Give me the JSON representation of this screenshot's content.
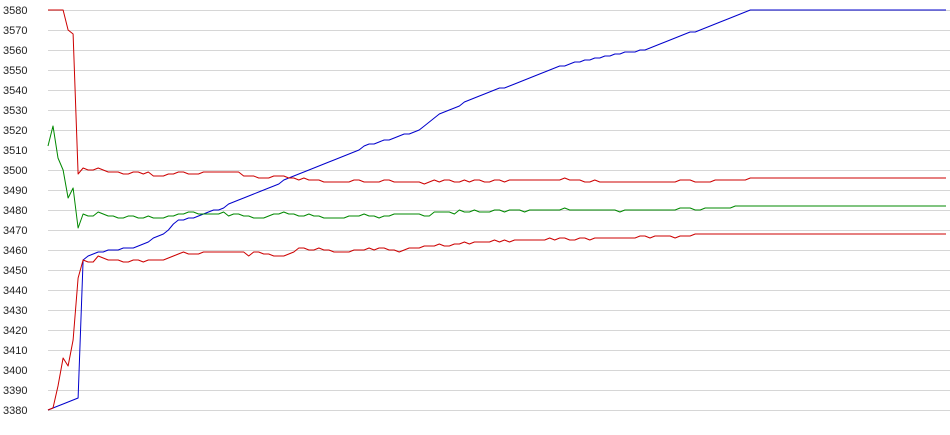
{
  "chart_data": {
    "type": "line",
    "title": "",
    "xlabel": "",
    "ylabel": "",
    "ylim": [
      3380,
      3580
    ],
    "yticks": [
      3380,
      3390,
      3400,
      3410,
      3420,
      3430,
      3440,
      3450,
      3460,
      3470,
      3480,
      3490,
      3500,
      3510,
      3520,
      3530,
      3540,
      3550,
      3560,
      3570,
      3580
    ],
    "grid": true,
    "legend": "none",
    "x": [
      0,
      1,
      2,
      3,
      4,
      5,
      6,
      7,
      8,
      9,
      10,
      11,
      12,
      13,
      14,
      15,
      16,
      17,
      18,
      19,
      20,
      21,
      22,
      23,
      24,
      25,
      26,
      27,
      28,
      29,
      30,
      31,
      32,
      33,
      34,
      35,
      36,
      37,
      38,
      39,
      40,
      41,
      42,
      43,
      44,
      45,
      46,
      47,
      48,
      49,
      50,
      51,
      52,
      53,
      54,
      55,
      56,
      57,
      58,
      59,
      60,
      61,
      62,
      63,
      64,
      65,
      66,
      67,
      68,
      69,
      70,
      71,
      72,
      73,
      74,
      75,
      76,
      77,
      78,
      79,
      80,
      81,
      82,
      83,
      84,
      85,
      86,
      87,
      88,
      89,
      90,
      91,
      92,
      93,
      94,
      95,
      96,
      97,
      98,
      99,
      100,
      101,
      102,
      103,
      104,
      105,
      106,
      107,
      108,
      109,
      110,
      111,
      112,
      113,
      114,
      115,
      116,
      117,
      118,
      119,
      120,
      121,
      122,
      123,
      124,
      125,
      126,
      127,
      128,
      129,
      130,
      131,
      132,
      133,
      134,
      135,
      136,
      137,
      138,
      139,
      140,
      141,
      142,
      143,
      144,
      145,
      146,
      147,
      148,
      149,
      150,
      151,
      152,
      153,
      154,
      155,
      156,
      157,
      158,
      159,
      160,
      161,
      162,
      163,
      164,
      165,
      166,
      167,
      168,
      169,
      170,
      171,
      172,
      173,
      174,
      175,
      176,
      177,
      178,
      179
    ],
    "series": [
      {
        "color": "#0000cc",
        "values": [
          3380,
          3381,
          3382,
          3383,
          3384,
          3385,
          3386,
          3455,
          3457,
          3458,
          3459,
          3459,
          3460,
          3460,
          3460,
          3461,
          3461,
          3461,
          3462,
          3463,
          3464,
          3466,
          3467,
          3468,
          3470,
          3473,
          3475,
          3475,
          3476,
          3476,
          3477,
          3478,
          3479,
          3480,
          3480,
          3481,
          3483,
          3484,
          3485,
          3486,
          3487,
          3488,
          3489,
          3490,
          3491,
          3492,
          3493,
          3495,
          3496,
          3497,
          3498,
          3499,
          3500,
          3501,
          3502,
          3503,
          3504,
          3505,
          3506,
          3507,
          3508,
          3509,
          3510,
          3512,
          3513,
          3513,
          3514,
          3515,
          3515,
          3516,
          3517,
          3518,
          3518,
          3519,
          3520,
          3522,
          3524,
          3526,
          3528,
          3529,
          3530,
          3531,
          3532,
          3534,
          3535,
          3536,
          3537,
          3538,
          3539,
          3540,
          3541,
          3541,
          3542,
          3543,
          3544,
          3545,
          3546,
          3547,
          3548,
          3549,
          3550,
          3551,
          3552,
          3552,
          3553,
          3554,
          3554,
          3555,
          3555,
          3556,
          3556,
          3557,
          3557,
          3558,
          3558,
          3559,
          3559,
          3559,
          3560,
          3560,
          3561,
          3562,
          3563,
          3564,
          3565,
          3566,
          3567,
          3568,
          3569,
          3569,
          3570,
          3571,
          3572,
          3573,
          3574,
          3575,
          3576,
          3577,
          3578,
          3579,
          3580,
          3580,
          3580,
          3580,
          3580,
          3580,
          3580,
          3580,
          3580,
          3580,
          3580,
          3580,
          3580,
          3580,
          3580,
          3580,
          3580,
          3580,
          3580,
          3580,
          3580,
          3580,
          3580,
          3580,
          3580,
          3580,
          3580,
          3580,
          3580,
          3580,
          3580,
          3580,
          3580,
          3580,
          3580,
          3580,
          3580,
          3580,
          3580,
          3580
        ]
      },
      {
        "color": "#cc0000",
        "values": [
          3580,
          3580,
          3580,
          3580,
          3570,
          3568,
          3498,
          3501,
          3500,
          3500,
          3501,
          3500,
          3499,
          3499,
          3499,
          3498,
          3498,
          3499,
          3499,
          3498,
          3499,
          3497,
          3497,
          3497,
          3498,
          3498,
          3499,
          3499,
          3498,
          3498,
          3498,
          3499,
          3499,
          3499,
          3499,
          3499,
          3499,
          3499,
          3499,
          3497,
          3497,
          3497,
          3496,
          3496,
          3496,
          3497,
          3497,
          3497,
          3496,
          3496,
          3495,
          3496,
          3495,
          3495,
          3495,
          3494,
          3494,
          3494,
          3494,
          3494,
          3494,
          3495,
          3495,
          3494,
          3494,
          3494,
          3494,
          3495,
          3495,
          3494,
          3494,
          3494,
          3494,
          3494,
          3494,
          3493,
          3494,
          3495,
          3494,
          3495,
          3495,
          3494,
          3494,
          3495,
          3494,
          3495,
          3495,
          3494,
          3494,
          3495,
          3495,
          3494,
          3495,
          3495,
          3495,
          3495,
          3495,
          3495,
          3495,
          3495,
          3495,
          3495,
          3495,
          3496,
          3495,
          3495,
          3495,
          3494,
          3494,
          3495,
          3494,
          3494,
          3494,
          3494,
          3494,
          3494,
          3494,
          3494,
          3494,
          3494,
          3494,
          3494,
          3494,
          3494,
          3494,
          3494,
          3495,
          3495,
          3495,
          3494,
          3494,
          3494,
          3494,
          3495,
          3495,
          3495,
          3495,
          3495,
          3495,
          3495,
          3496,
          3496,
          3496,
          3496,
          3496,
          3496,
          3496,
          3496,
          3496,
          3496,
          3496,
          3496,
          3496,
          3496,
          3496,
          3496,
          3496,
          3496,
          3496,
          3496,
          3496,
          3496,
          3496,
          3496,
          3496,
          3496,
          3496,
          3496,
          3496,
          3496,
          3496,
          3496,
          3496,
          3496,
          3496,
          3496,
          3496,
          3496,
          3496,
          3496
        ]
      },
      {
        "color": "#008800",
        "values": [
          3512,
          3522,
          3506,
          3500,
          3486,
          3491,
          3471,
          3478,
          3477,
          3477,
          3479,
          3478,
          3477,
          3477,
          3476,
          3476,
          3477,
          3477,
          3476,
          3476,
          3477,
          3476,
          3476,
          3476,
          3477,
          3477,
          3478,
          3478,
          3479,
          3479,
          3478,
          3478,
          3478,
          3478,
          3478,
          3479,
          3477,
          3478,
          3478,
          3477,
          3477,
          3476,
          3476,
          3476,
          3477,
          3478,
          3478,
          3479,
          3478,
          3478,
          3477,
          3477,
          3478,
          3477,
          3477,
          3476,
          3476,
          3476,
          3476,
          3476,
          3477,
          3477,
          3477,
          3478,
          3477,
          3477,
          3476,
          3477,
          3477,
          3478,
          3478,
          3478,
          3478,
          3478,
          3478,
          3477,
          3477,
          3479,
          3479,
          3479,
          3479,
          3478,
          3480,
          3479,
          3479,
          3480,
          3479,
          3479,
          3479,
          3480,
          3480,
          3479,
          3480,
          3480,
          3480,
          3479,
          3480,
          3480,
          3480,
          3480,
          3480,
          3480,
          3480,
          3481,
          3480,
          3480,
          3480,
          3480,
          3480,
          3480,
          3480,
          3480,
          3480,
          3480,
          3479,
          3480,
          3480,
          3480,
          3480,
          3480,
          3480,
          3480,
          3480,
          3480,
          3480,
          3480,
          3481,
          3481,
          3481,
          3480,
          3480,
          3481,
          3481,
          3481,
          3481,
          3481,
          3481,
          3482,
          3482,
          3482,
          3482,
          3482,
          3482,
          3482,
          3482,
          3482,
          3482,
          3482,
          3482,
          3482,
          3482,
          3482,
          3482,
          3482,
          3482,
          3482,
          3482,
          3482,
          3482,
          3482,
          3482,
          3482,
          3482,
          3482,
          3482,
          3482,
          3482,
          3482,
          3482,
          3482,
          3482,
          3482,
          3482,
          3482,
          3482,
          3482,
          3482,
          3482,
          3482,
          3482
        ]
      },
      {
        "color": "#cc0000",
        "values": [
          3380,
          3381,
          3392,
          3406,
          3402,
          3415,
          3446,
          3455,
          3454,
          3454,
          3457,
          3456,
          3455,
          3455,
          3455,
          3454,
          3454,
          3455,
          3455,
          3454,
          3455,
          3455,
          3455,
          3455,
          3456,
          3457,
          3458,
          3459,
          3458,
          3458,
          3458,
          3459,
          3459,
          3459,
          3459,
          3459,
          3459,
          3459,
          3459,
          3459,
          3457,
          3459,
          3459,
          3458,
          3458,
          3457,
          3457,
          3457,
          3458,
          3459,
          3461,
          3461,
          3460,
          3460,
          3461,
          3460,
          3460,
          3459,
          3459,
          3459,
          3459,
          3460,
          3460,
          3460,
          3461,
          3460,
          3461,
          3461,
          3460,
          3460,
          3459,
          3460,
          3461,
          3461,
          3461,
          3462,
          3462,
          3462,
          3463,
          3462,
          3462,
          3463,
          3463,
          3464,
          3463,
          3464,
          3464,
          3464,
          3464,
          3465,
          3464,
          3465,
          3464,
          3465,
          3465,
          3465,
          3465,
          3465,
          3465,
          3465,
          3466,
          3465,
          3466,
          3466,
          3465,
          3465,
          3466,
          3466,
          3465,
          3466,
          3466,
          3466,
          3466,
          3466,
          3466,
          3466,
          3466,
          3466,
          3467,
          3467,
          3466,
          3467,
          3467,
          3467,
          3467,
          3466,
          3467,
          3467,
          3467,
          3468,
          3468,
          3468,
          3468,
          3468,
          3468,
          3468,
          3468,
          3468,
          3468,
          3468,
          3468,
          3468,
          3468,
          3468,
          3468,
          3468,
          3468,
          3468,
          3468,
          3468,
          3468,
          3468,
          3468,
          3468,
          3468,
          3468,
          3468,
          3468,
          3468,
          3468,
          3468,
          3468,
          3468,
          3468,
          3468,
          3468,
          3468,
          3468,
          3468,
          3468,
          3468,
          3468,
          3468,
          3468,
          3468,
          3468,
          3468,
          3468,
          3468,
          3468
        ]
      }
    ]
  }
}
